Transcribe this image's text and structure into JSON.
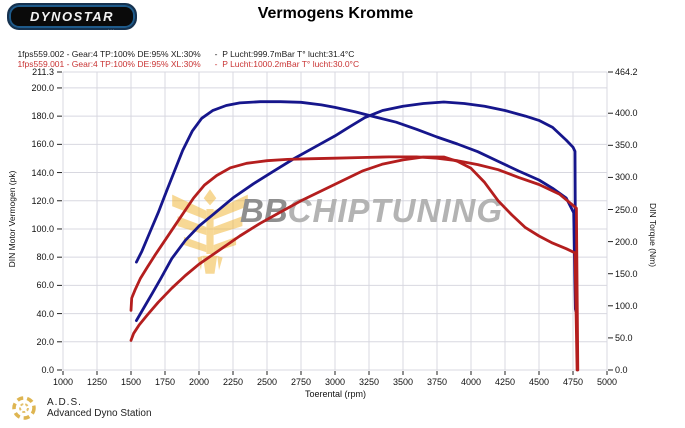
{
  "header": {
    "logo_text": "DYNOSTAR",
    "logo_fineprint": "...",
    "title": "Vermogens Kromme"
  },
  "run_info": [
    {
      "file_params": "1fps559.002 - Gear:4 TP:100% DE:95% XL:30%",
      "ambient": "-  P Lucht:999.7mBar T° lucht:31.4°C",
      "color": "#1a1a1a"
    },
    {
      "file_params": "1fps559.001 - Gear:4 TP:100% DE:95% XL:30%",
      "ambient": "-  P Lucht:1000.2mBar T° lucht:30.0°C",
      "color": "#c93434"
    }
  ],
  "watermark": {
    "bb": "BB",
    "rest": "CHIPTUNING",
    "emblem_color": "#f2b93f"
  },
  "footer": {
    "ads_abbr": "A.D.S.",
    "ads_name": "Advanced Dyno Station",
    "icon_color": "#d8a832"
  },
  "chart_data": {
    "type": "line",
    "title": "Vermogens Kromme",
    "xlabel": "Toerental (rpm)",
    "ylabel_left": "DIN Motor Vermogen (pk)",
    "ylabel_right": "DIN Torque (Nm)",
    "x_range": [
      1000,
      5000
    ],
    "y_left_range": [
      0,
      211.3
    ],
    "y_right_range": [
      0,
      464.2
    ],
    "x_tick_labels": [
      "1000",
      "1250",
      "1500",
      "1750",
      "2000",
      "2250",
      "2500",
      "2750",
      "3000",
      "3250",
      "3500",
      "3750",
      "4000",
      "4250",
      "4500",
      "4750",
      "5000"
    ],
    "y_left_tick_labels": [
      "211.3",
      "200.0",
      "180.0",
      "160.0",
      "140.0",
      "120.0",
      "100.0",
      "80.0",
      "60.0",
      "40.0",
      "20.0",
      "0.0"
    ],
    "y_left_tick_values": [
      211.3,
      200,
      180,
      160,
      140,
      120,
      100,
      80,
      60,
      40,
      20,
      0
    ],
    "y_right_tick_labels": [
      "464.2",
      "400.0",
      "350.0",
      "300.0",
      "250.0",
      "200.0",
      "150.0",
      "100.0",
      "50.0",
      "0.0"
    ],
    "y_right_tick_values": [
      464.2,
      400,
      350,
      300,
      250,
      200,
      150,
      100,
      50,
      0
    ],
    "grid": true,
    "grid_color": "#d8d8e0",
    "colors": {
      "run_002": "#16168c",
      "run_001": "#b41e1e"
    },
    "series": [
      {
        "name": "power-run-002",
        "axis": "left",
        "unit": "pk",
        "color": "#16168c",
        "points": [
          [
            1540,
            35
          ],
          [
            1600,
            45
          ],
          [
            1660,
            55
          ],
          [
            1720,
            65
          ],
          [
            1800,
            79
          ],
          [
            1900,
            92
          ],
          [
            2000,
            102
          ],
          [
            2100,
            110
          ],
          [
            2250,
            122
          ],
          [
            2400,
            132
          ],
          [
            2550,
            141
          ],
          [
            2700,
            150
          ],
          [
            2850,
            158
          ],
          [
            3000,
            166
          ],
          [
            3100,
            172
          ],
          [
            3220,
            179
          ],
          [
            3350,
            184
          ],
          [
            3500,
            187
          ],
          [
            3650,
            189
          ],
          [
            3800,
            190
          ],
          [
            3950,
            189
          ],
          [
            4100,
            187
          ],
          [
            4250,
            184
          ],
          [
            4400,
            180
          ],
          [
            4500,
            177
          ],
          [
            4600,
            172
          ],
          [
            4700,
            163
          ],
          [
            4750,
            158
          ],
          [
            4765,
            155
          ],
          [
            4770,
            42
          ]
        ]
      },
      {
        "name": "torque-run-002",
        "axis": "right",
        "unit": "Nm",
        "color": "#16168c",
        "points": [
          [
            1540,
            168
          ],
          [
            1580,
            185
          ],
          [
            1640,
            215
          ],
          [
            1700,
            245
          ],
          [
            1760,
            278
          ],
          [
            1820,
            310
          ],
          [
            1880,
            342
          ],
          [
            1950,
            372
          ],
          [
            2020,
            392
          ],
          [
            2100,
            404
          ],
          [
            2200,
            412
          ],
          [
            2300,
            416
          ],
          [
            2450,
            418
          ],
          [
            2600,
            418
          ],
          [
            2750,
            417
          ],
          [
            2900,
            413
          ],
          [
            3000,
            409
          ],
          [
            3150,
            402
          ],
          [
            3300,
            394
          ],
          [
            3450,
            386
          ],
          [
            3600,
            375
          ],
          [
            3750,
            363
          ],
          [
            3900,
            352
          ],
          [
            4050,
            340
          ],
          [
            4200,
            325
          ],
          [
            4350,
            310
          ],
          [
            4500,
            296
          ],
          [
            4600,
            283
          ],
          [
            4700,
            268
          ],
          [
            4755,
            245
          ],
          [
            4768,
            95
          ]
        ]
      },
      {
        "name": "power-run-001",
        "axis": "left",
        "unit": "pk",
        "color": "#b41e1e",
        "points": [
          [
            1500,
            21
          ],
          [
            1520,
            26
          ],
          [
            1560,
            32
          ],
          [
            1620,
            39
          ],
          [
            1700,
            48
          ],
          [
            1800,
            58
          ],
          [
            1900,
            67
          ],
          [
            2000,
            75
          ],
          [
            2150,
            85
          ],
          [
            2300,
            95
          ],
          [
            2450,
            104
          ],
          [
            2600,
            112
          ],
          [
            2750,
            120
          ],
          [
            2900,
            127
          ],
          [
            3050,
            134
          ],
          [
            3200,
            141
          ],
          [
            3350,
            146
          ],
          [
            3500,
            149
          ],
          [
            3650,
            151
          ],
          [
            3800,
            151
          ],
          [
            3900,
            148
          ],
          [
            4000,
            143
          ],
          [
            4100,
            133
          ],
          [
            4200,
            120
          ],
          [
            4300,
            110
          ],
          [
            4400,
            101
          ],
          [
            4500,
            95
          ],
          [
            4600,
            90
          ],
          [
            4700,
            86
          ],
          [
            4765,
            83
          ],
          [
            4780,
            0
          ]
        ]
      },
      {
        "name": "torque-run-001",
        "axis": "right",
        "unit": "Nm",
        "color": "#b41e1e",
        "points": [
          [
            1500,
            93
          ],
          [
            1505,
            112
          ],
          [
            1530,
            125
          ],
          [
            1570,
            143
          ],
          [
            1620,
            160
          ],
          [
            1680,
            180
          ],
          [
            1750,
            202
          ],
          [
            1820,
            224
          ],
          [
            1890,
            246
          ],
          [
            1960,
            268
          ],
          [
            2040,
            288
          ],
          [
            2130,
            303
          ],
          [
            2230,
            315
          ],
          [
            2350,
            322
          ],
          [
            2500,
            326
          ],
          [
            2650,
            328
          ],
          [
            2800,
            329
          ],
          [
            3000,
            330
          ],
          [
            3200,
            331
          ],
          [
            3400,
            332
          ],
          [
            3600,
            332
          ],
          [
            3750,
            330
          ],
          [
            3900,
            326
          ],
          [
            4050,
            320
          ],
          [
            4200,
            312
          ],
          [
            4350,
            300
          ],
          [
            4500,
            289
          ],
          [
            4650,
            274
          ],
          [
            4775,
            252
          ],
          [
            4785,
            0
          ]
        ]
      }
    ]
  }
}
